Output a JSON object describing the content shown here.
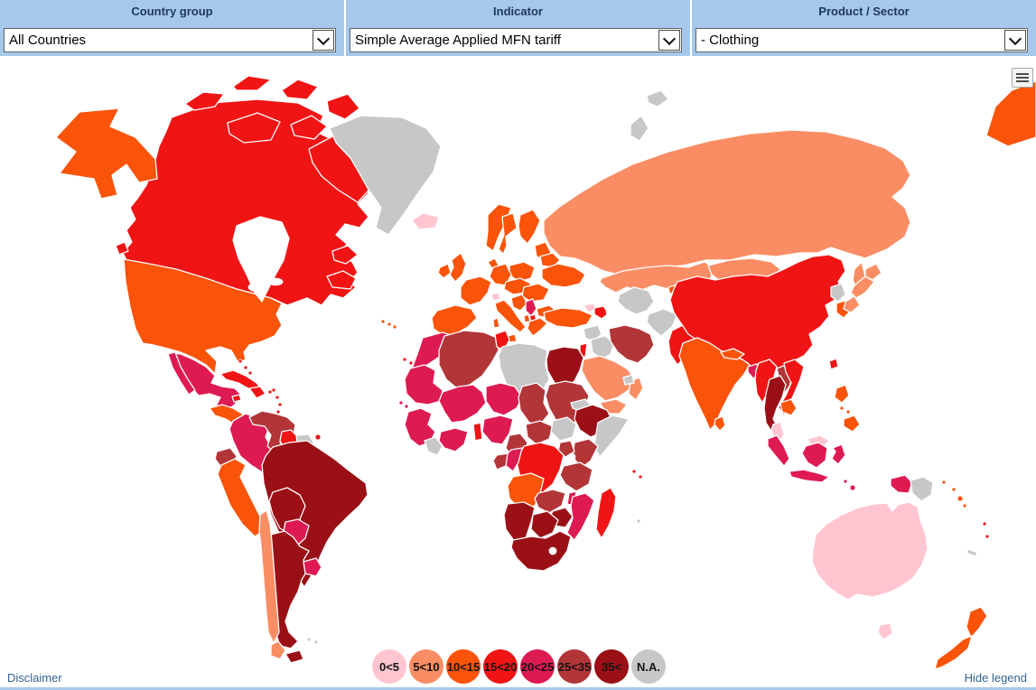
{
  "header": {
    "background": "#A5C8EB",
    "controls": [
      {
        "label": "Country group",
        "value": "All Countries"
      },
      {
        "label": "Indicator",
        "value": "Simple Average Applied MFN tariff"
      },
      {
        "label": "Product / Sector",
        "value": "- Clothing"
      }
    ]
  },
  "legend": {
    "items": [
      {
        "label": "0<5",
        "color": "#FFC5D1"
      },
      {
        "label": "5<10",
        "color": "#FA8D64"
      },
      {
        "label": "10<15",
        "color": "#FA530A"
      },
      {
        "label": "15<20",
        "color": "#F01414"
      },
      {
        "label": "20<25",
        "color": "#DE1A52"
      },
      {
        "label": "25<35",
        "color": "#B23538"
      },
      {
        "label": "35<",
        "color": "#9A1016"
      },
      {
        "label": "N.A.",
        "color": "#C7C7C7"
      }
    ]
  },
  "footer": {
    "disclaimer_label": "Disclaimer",
    "hide_legend_label": "Hide legend"
  },
  "map": {
    "type": "choropleth",
    "indicator": "Simple Average Applied MFN tariff",
    "product": "- Clothing",
    "countries": {
      "usa": "10<15",
      "canada": "15<20",
      "greenland": "N.A.",
      "iceland": "0<5",
      "mexico": "20<25",
      "central-america": "10<15",
      "cuba": "15<20",
      "hispaniola": "15<20",
      "jamaica": "15<20",
      "bahamas": "15<20",
      "puerto-rico": "15<20",
      "lesser-antilles": "15<20",
      "trinidad-tobago": "15<20",
      "colombia": "20<25",
      "venezuela": "25<35",
      "guyana": "15<20",
      "suriname": "N.A.",
      "ecuador": "25<35",
      "peru": "10<15",
      "brazil": "35<",
      "bolivia": "35<",
      "paraguay": "20<25",
      "uruguay": "20<25",
      "argentina": "35<",
      "chile": "5<10",
      "falkland-islands": "N.A.",
      "norway": "10<15",
      "sweden": "10<15",
      "finland": "10<15",
      "denmark": "10<15",
      "united-kingdom": "10<15",
      "ireland": "10<15",
      "iberia": "10<15",
      "france": "10<15",
      "germany": "10<15",
      "poland": "10<15",
      "central-europe": "10<15",
      "romania-hungary": "10<15",
      "balkans-west": "10<15",
      "serbia": "20<25",
      "north-macedonia": "15<20",
      "albania": "10<15",
      "greece": "10<15",
      "bulgaria": "10<15",
      "italy": "10<15",
      "switzerland": "0<5",
      "baltics": "10<15",
      "belarus": "10<15",
      "ukraine": "10<15",
      "turkey": "10<15",
      "russia": "5<10",
      "kazakhstan": "5<10",
      "mongolia": "5<10",
      "georgia": "0<5",
      "azerbaijan": "15<20",
      "svalbard": "N.A.",
      "novaya-zemlya": "N.A.",
      "syria": "N.A.",
      "iraq": "N.A.",
      "iran": "25<35",
      "jordan-israel": "15<20",
      "saudi-arabia": "5<10",
      "yemen": "5<10",
      "oman": "5<10",
      "uae": "N.A.",
      "turkmenistan-uzbekistan": "N.A.",
      "kyrgyzstan-tajikistan": "10<15",
      "afghanistan": "N.A.",
      "pakistan": "15<20",
      "india": "10<15",
      "nepal": "10<15",
      "bangladesh": "20<25",
      "sri-lanka": "10<15",
      "china": "15<20",
      "taiwan": "15<20",
      "north-korea": "N.A.",
      "south-korea": "10<15",
      "japan": "5<10",
      "myanmar": "15<20",
      "laos": "25<35",
      "vietnam": "15<20",
      "thailand": "35<",
      "cambodia": "10<15",
      "malaysia": "0<5",
      "indonesia": "20<25",
      "philippines": "10<15",
      "papua-new-guinea": "N.A.",
      "solomon-vanuatu": "10<15",
      "fiji": "15<20",
      "new-caledonia": "N.A.",
      "australia": "0<5",
      "new-zealand": "10<15",
      "morocco": "20<25",
      "canary-islands": "15<20",
      "algeria": "25<35",
      "tunisia": "15<20",
      "libya": "N.A.",
      "egypt": "35<",
      "mauritania": "20<25",
      "mali": "20<25",
      "niger": "20<25",
      "chad": "25<35",
      "sudan": "25<35",
      "senegal-guinea": "20<25",
      "cape-verde": "20<25",
      "sierra-leone-liberia": "N.A.",
      "cote-divoire-ghana": "20<25",
      "benin-togo": "15<20",
      "nigeria": "20<25",
      "cameroon": "25<35",
      "central-african-republic": "25<35",
      "south-sudan": "N.A.",
      "eritrea": "N.A.",
      "ethiopia": "35<",
      "somalia": "N.A.",
      "kenya": "25<35",
      "uganda": "25<35",
      "drc": "15<20",
      "congo": "20<25",
      "gabon": "25<35",
      "tanzania": "25<35",
      "angola": "10<15",
      "zambia": "25<35",
      "malawi": "20<25",
      "mozambique": "20<25",
      "zimbabwe": "35<",
      "namibia": "35<",
      "botswana": "35<",
      "south-africa": "35<",
      "madagascar": "15<20",
      "mauritius-seychelles": "15<20",
      "reunion": "N.A."
    }
  }
}
